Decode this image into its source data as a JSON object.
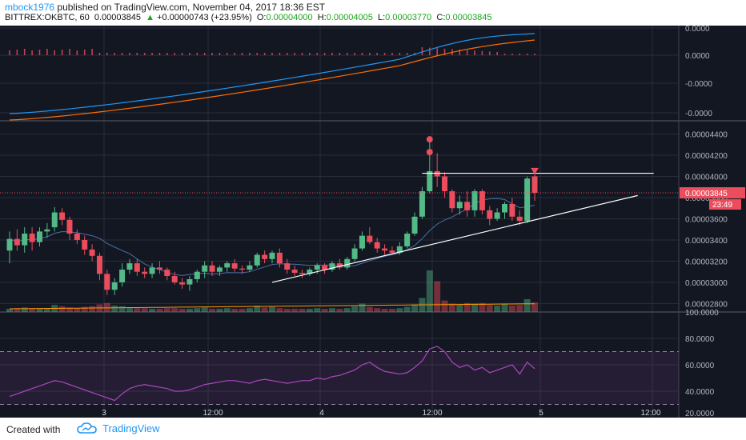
{
  "header": {
    "author": "mbock1976",
    "published_text": "published on TradingView.com, November 04, 2017 18:36 EST",
    "symbol": "BITTREX:OKBTC, 60",
    "last": "0.00003845",
    "change_arrow": "▲",
    "change": "+0.00000743 (+23.95%)",
    "open_label": "O:",
    "open": "0.00004000",
    "high_label": "H:",
    "high": "0.00004005",
    "low_label": "L:",
    "low": "0.00003770",
    "close_label": "C:",
    "close": "0.00003845"
  },
  "footer": {
    "created_with": "Created with",
    "brand": "TradingView",
    "brand_icon": "tradingview-cloud-icon"
  },
  "colors": {
    "bg": "#131722",
    "up": "#53b987",
    "down": "#eb4d5c",
    "grid": "#2a2e39",
    "rsi": "#ab47bc"
  },
  "chart_data": {
    "type": "candlestick",
    "price_axis_labels": [
      "0.00004400",
      "0.00004200",
      "0.00004000",
      "0.00003800",
      "0.00003600",
      "0.00003400",
      "0.00003200",
      "0.00003000",
      "0.00002800"
    ],
    "price_range": [
      2.72e-05,
      4.51e-05
    ],
    "last_price_label": "0.00003845",
    "countdown_label": "23:49",
    "indicator_axis_labels": [
      "0.0000",
      "0.0000",
      "-0.0000",
      "-0.0000"
    ],
    "rsi_axis_labels": [
      "100.0000",
      "80.0000",
      "60.0000",
      "40.0000",
      "20.0000"
    ],
    "rsi_range": [
      20,
      100
    ],
    "rsi_bands": [
      70,
      30
    ],
    "x_labels": [
      "3",
      "12:00",
      "4",
      "12:00",
      "5",
      "12:00"
    ],
    "candles": [
      [
        3.3,
        3.48,
        3.18,
        3.41
      ],
      [
        3.41,
        3.5,
        3.3,
        3.35
      ],
      [
        3.35,
        3.52,
        3.28,
        3.46
      ],
      [
        3.46,
        3.52,
        3.3,
        3.38
      ],
      [
        3.38,
        3.52,
        3.34,
        3.48
      ],
      [
        3.48,
        3.56,
        3.42,
        3.5
      ],
      [
        3.52,
        3.71,
        3.48,
        3.66
      ],
      [
        3.66,
        3.7,
        3.54,
        3.59
      ],
      [
        3.59,
        3.62,
        3.4,
        3.46
      ],
      [
        3.46,
        3.5,
        3.36,
        3.4
      ],
      [
        3.4,
        3.44,
        3.26,
        3.31
      ],
      [
        3.31,
        3.36,
        3.2,
        3.25
      ],
      [
        3.25,
        3.28,
        3.02,
        3.08
      ],
      [
        3.08,
        3.12,
        2.88,
        2.93
      ],
      [
        2.93,
        3.04,
        2.88,
        3.0
      ],
      [
        3.0,
        3.18,
        2.96,
        3.12
      ],
      [
        3.12,
        3.22,
        3.08,
        3.18
      ],
      [
        3.18,
        3.22,
        3.06,
        3.1
      ],
      [
        3.1,
        3.14,
        3.04,
        3.08
      ],
      [
        3.08,
        3.18,
        3.04,
        3.14
      ],
      [
        3.14,
        3.2,
        3.08,
        3.12
      ],
      [
        3.12,
        3.14,
        3.02,
        3.06
      ],
      [
        3.06,
        3.1,
        2.98,
        3.0
      ],
      [
        3.0,
        3.04,
        2.94,
        2.98
      ],
      [
        2.98,
        3.06,
        2.92,
        3.03
      ],
      [
        3.03,
        3.12,
        3.0,
        3.1
      ],
      [
        3.1,
        3.2,
        3.04,
        3.16
      ],
      [
        3.16,
        3.2,
        3.06,
        3.1
      ],
      [
        3.1,
        3.16,
        3.06,
        3.14
      ],
      [
        3.14,
        3.2,
        3.1,
        3.18
      ],
      [
        3.18,
        3.22,
        3.1,
        3.13
      ],
      [
        3.13,
        3.16,
        3.08,
        3.12
      ],
      [
        3.12,
        3.2,
        3.1,
        3.16
      ],
      [
        3.16,
        3.28,
        3.14,
        3.26
      ],
      [
        3.26,
        3.3,
        3.18,
        3.22
      ],
      [
        3.22,
        3.3,
        3.18,
        3.28
      ],
      [
        3.28,
        3.32,
        3.14,
        3.18
      ],
      [
        3.18,
        3.22,
        3.08,
        3.12
      ],
      [
        3.12,
        3.16,
        3.06,
        3.09
      ],
      [
        3.09,
        3.12,
        3.04,
        3.08
      ],
      [
        3.08,
        3.14,
        3.06,
        3.12
      ],
      [
        3.12,
        3.18,
        3.08,
        3.16
      ],
      [
        3.16,
        3.18,
        3.08,
        3.12
      ],
      [
        3.12,
        3.2,
        3.1,
        3.18
      ],
      [
        3.18,
        3.22,
        3.12,
        3.14
      ],
      [
        3.14,
        3.24,
        3.12,
        3.22
      ],
      [
        3.22,
        3.36,
        3.2,
        3.32
      ],
      [
        3.32,
        3.48,
        3.3,
        3.44
      ],
      [
        3.44,
        3.52,
        3.36,
        3.38
      ],
      [
        3.38,
        3.42,
        3.28,
        3.32
      ],
      [
        3.32,
        3.36,
        3.26,
        3.3
      ],
      [
        3.3,
        3.34,
        3.26,
        3.28
      ],
      [
        3.28,
        3.38,
        3.26,
        3.34
      ],
      [
        3.34,
        3.48,
        3.32,
        3.46
      ],
      [
        3.46,
        3.66,
        3.44,
        3.62
      ],
      [
        3.62,
        3.9,
        3.6,
        3.86
      ],
      [
        3.86,
        4.36,
        3.84,
        4.05
      ],
      [
        4.05,
        4.22,
        3.9,
        4.0
      ],
      [
        4.0,
        4.04,
        3.8,
        3.86
      ],
      [
        3.86,
        3.88,
        3.66,
        3.7
      ],
      [
        3.7,
        3.82,
        3.64,
        3.76
      ],
      [
        3.76,
        3.86,
        3.62,
        3.68
      ],
      [
        3.68,
        3.88,
        3.62,
        3.86
      ],
      [
        3.86,
        3.88,
        3.64,
        3.68
      ],
      [
        3.68,
        3.72,
        3.54,
        3.6
      ],
      [
        3.6,
        3.7,
        3.58,
        3.66
      ],
      [
        3.66,
        3.76,
        3.6,
        3.74
      ],
      [
        3.74,
        3.8,
        3.58,
        3.62
      ],
      [
        3.62,
        3.68,
        3.54,
        3.58
      ],
      [
        3.58,
        4.0,
        3.56,
        3.98
      ],
      [
        4.0,
        4.05,
        3.77,
        3.845
      ]
    ],
    "volumes": [
      0.5,
      0.6,
      0.7,
      0.6,
      0.5,
      0.6,
      1.1,
      0.9,
      0.7,
      0.6,
      0.8,
      0.9,
      1.2,
      1.4,
      1.0,
      0.9,
      0.7,
      0.6,
      0.6,
      0.5,
      0.5,
      0.6,
      0.6,
      0.5,
      0.5,
      0.6,
      0.7,
      0.5,
      0.5,
      0.6,
      0.5,
      0.5,
      0.6,
      1.0,
      0.7,
      0.8,
      0.6,
      0.5,
      0.5,
      0.5,
      0.5,
      0.6,
      0.5,
      0.6,
      0.5,
      0.6,
      0.9,
      1.3,
      0.8,
      0.6,
      0.5,
      0.5,
      0.6,
      0.8,
      1.2,
      2.2,
      6.5,
      4.8,
      1.8,
      1.3,
      1.2,
      1.4,
      1.3,
      1.4,
      1.1,
      1.0,
      1.2,
      1.0,
      1.1,
      2.0,
      1.5
    ],
    "trendlines": [
      {
        "name": "resistance",
        "from": [
          55,
          4.03
        ],
        "to": [
          88,
          4.03
        ]
      },
      {
        "name": "support",
        "from": [
          35,
          3.0
        ],
        "to": [
          88,
          3.82
        ]
      }
    ],
    "rsi": [
      36,
      38,
      40,
      42,
      44,
      46,
      48,
      47,
      45,
      43,
      41,
      39,
      37,
      35,
      33,
      38,
      42,
      44,
      45,
      44,
      43,
      42,
      40,
      40,
      41,
      43,
      45,
      46,
      47,
      48,
      48,
      47,
      46,
      48,
      49,
      48,
      47,
      46,
      47,
      48,
      48,
      50,
      49,
      51,
      52,
      54,
      56,
      60,
      62,
      58,
      55,
      54,
      53,
      54,
      58,
      63,
      72,
      74,
      70,
      62,
      58,
      60,
      56,
      58,
      54,
      56,
      58,
      60,
      53,
      62,
      57
    ]
  }
}
